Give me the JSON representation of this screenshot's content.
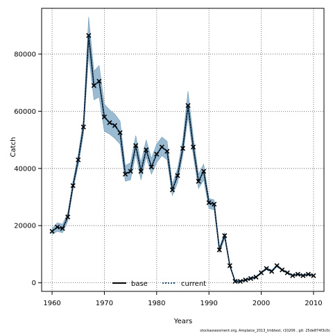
{
  "chart_data": {
    "type": "line",
    "xlabel": "Years",
    "ylabel": "Catch",
    "xlim": [
      1958,
      2012
    ],
    "ylim": [
      -3000,
      96000
    ],
    "xticks": [
      1960,
      1970,
      1980,
      1990,
      2000,
      2010
    ],
    "yticks": [
      0,
      20000,
      40000,
      60000,
      80000
    ],
    "grid": true,
    "grid_style": "dotted",
    "legend_position": "bottom-center",
    "colors": {
      "band": "#8fb4cc",
      "band_edge": "#6f9bb8",
      "base": "#000000",
      "current": "#1f4e79",
      "marker": "#000000"
    },
    "x": [
      1960,
      1961,
      1962,
      1963,
      1964,
      1965,
      1966,
      1967,
      1968,
      1969,
      1970,
      1971,
      1972,
      1973,
      1974,
      1975,
      1976,
      1977,
      1978,
      1979,
      1980,
      1981,
      1982,
      1983,
      1984,
      1985,
      1986,
      1987,
      1988,
      1989,
      1990,
      1991,
      1992,
      1993,
      1994,
      1995,
      1996,
      1997,
      1998,
      1999,
      2000,
      2001,
      2002,
      2003,
      2004,
      2005,
      2006,
      2007,
      2008,
      2009,
      2010
    ],
    "series": [
      {
        "name": "base",
        "style": "solid",
        "values": [
          18000,
          19500,
          19000,
          23000,
          34000,
          43000,
          54500,
          86500,
          69000,
          70500,
          58000,
          56000,
          55000,
          52500,
          38000,
          39000,
          48000,
          39000,
          46500,
          40500,
          45000,
          47500,
          46000,
          32500,
          37500,
          47000,
          62000,
          47500,
          35500,
          39000,
          28000,
          27500,
          11500,
          16500,
          6000,
          500,
          500,
          1000,
          1500,
          2000,
          3500,
          5000,
          4000,
          6000,
          4500,
          3500,
          2500,
          3000,
          2500,
          3000,
          2500
        ]
      },
      {
        "name": "current",
        "style": "dotted",
        "values": [
          18000,
          19500,
          19000,
          23000,
          34000,
          43000,
          54500,
          86500,
          69000,
          70500,
          58000,
          56000,
          55000,
          52500,
          38000,
          39000,
          48000,
          39000,
          46500,
          40500,
          45000,
          47500,
          46000,
          32500,
          37500,
          47000,
          62000,
          47500,
          35500,
          39000,
          28000,
          27500,
          11500,
          16500,
          6000,
          500,
          500,
          1000,
          1500,
          2000,
          3500,
          5000,
          4000,
          6000,
          4500,
          3500,
          2500,
          3000,
          2500,
          3000,
          2500
        ]
      }
    ],
    "band_lower": [
      17000,
      18000,
      17500,
      21500,
      32500,
      41000,
      52000,
      80000,
      64000,
      65000,
      53000,
      52000,
      50500,
      48500,
      35500,
      36000,
      45000,
      36000,
      44000,
      38000,
      42000,
      44500,
      43000,
      30500,
      35000,
      44500,
      58000,
      44500,
      33000,
      36000,
      26000,
      25500,
      10500,
      15500,
      5500,
      300,
      300,
      700,
      1200,
      1700,
      3200,
      4600,
      3700,
      5600,
      4200,
      3200,
      2300,
      2700,
      2300,
      2700,
      2300
    ],
    "band_upper": [
      19000,
      21000,
      20500,
      24500,
      35500,
      45000,
      57000,
      93000,
      74000,
      76000,
      62500,
      60500,
      59000,
      56500,
      41000,
      42000,
      51500,
      42000,
      50000,
      43500,
      48500,
      51000,
      49500,
      34500,
      40000,
      50000,
      67000,
      51000,
      38000,
      41500,
      29500,
      29000,
      12500,
      17500,
      6500,
      800,
      800,
      1300,
      1900,
      2300,
      3900,
      5400,
      4400,
      6400,
      4800,
      3800,
      2800,
      3300,
      2800,
      3300,
      2800
    ],
    "footer_note": "stockassessment.org, Amplaice_2013_tmbtest, r10206 , git: 25de874f3c0c"
  }
}
